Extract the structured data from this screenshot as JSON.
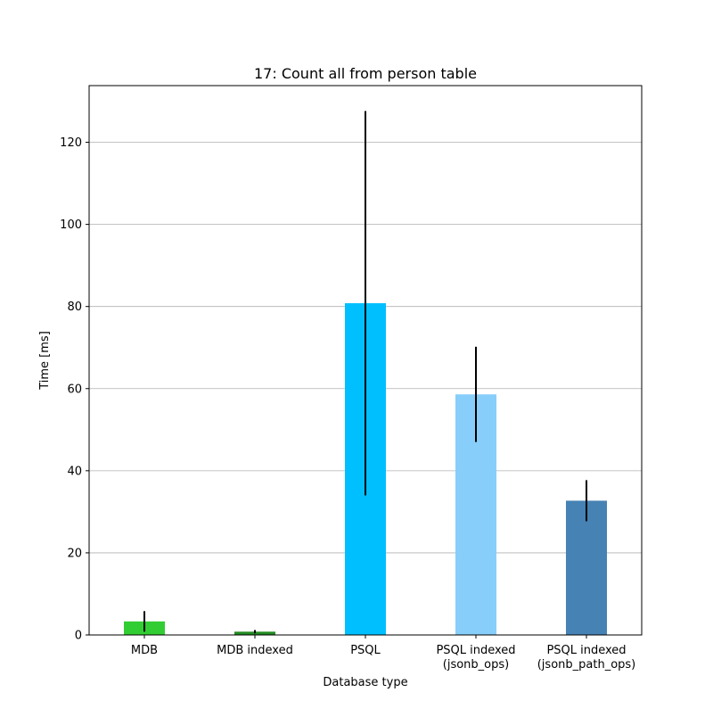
{
  "chart_data": {
    "type": "bar",
    "title": "17: Count all from person table",
    "xlabel": "Database type",
    "ylabel": "Time [ms]",
    "categories": [
      [
        "MDB"
      ],
      [
        "MDB indexed"
      ],
      [
        "PSQL"
      ],
      [
        "PSQL indexed",
        "(jsonb_ops)"
      ],
      [
        "PSQL indexed",
        "(jsonb_path_ops)"
      ]
    ],
    "values": [
      3.3,
      0.8,
      80.8,
      58.6,
      32.7
    ],
    "errors": [
      2.5,
      0.4,
      46.8,
      11.6,
      5.0
    ],
    "colors": [
      "#32cd32",
      "#228b22",
      "#00bfff",
      "#87cefa",
      "#4682b4"
    ],
    "error_color": "#000000",
    "ylim": [
      0,
      133.8
    ],
    "yticks": [
      0,
      20,
      40,
      60,
      80,
      100,
      120
    ],
    "grid": "y",
    "legend": "none"
  }
}
